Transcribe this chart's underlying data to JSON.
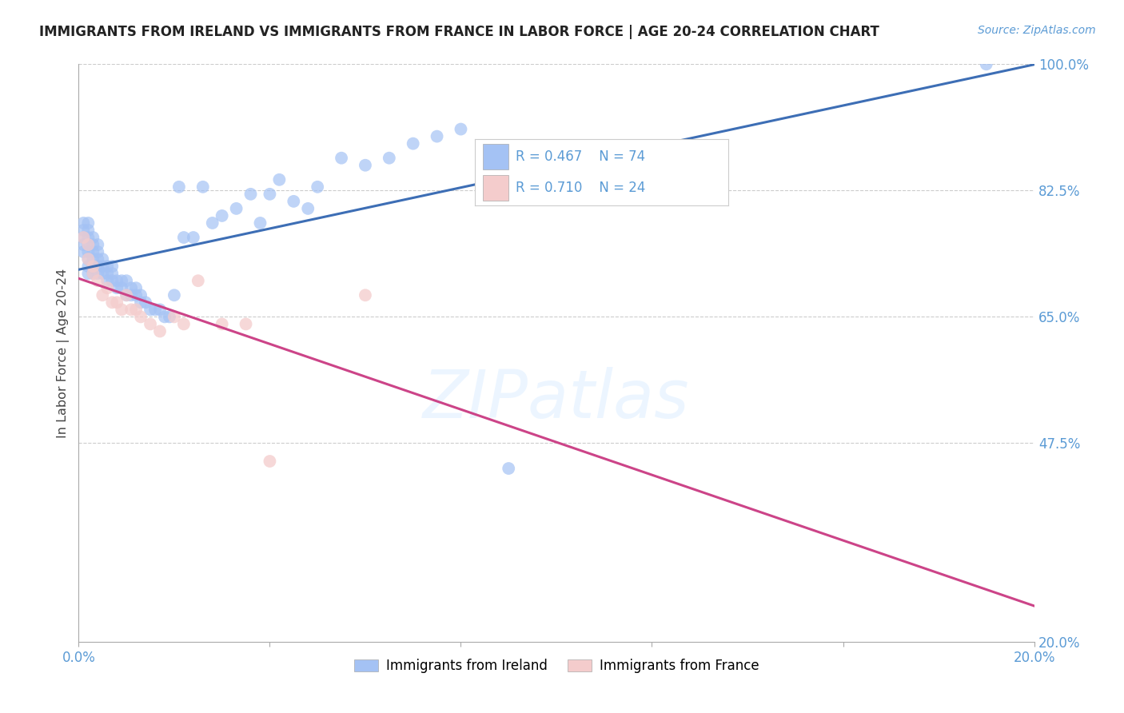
{
  "title": "IMMIGRANTS FROM IRELAND VS IMMIGRANTS FROM FRANCE IN LABOR FORCE | AGE 20-24 CORRELATION CHART",
  "source": "Source: ZipAtlas.com",
  "ylabel": "In Labor Force | Age 20-24",
  "x_min": 0.0,
  "x_max": 0.2,
  "y_min": 0.2,
  "y_max": 1.0,
  "ireland_R": 0.467,
  "ireland_N": 74,
  "france_R": 0.71,
  "france_N": 24,
  "ireland_color": "#a4c2f4",
  "france_color": "#f4cccc",
  "ireland_line_color": "#3d6eb5",
  "france_line_color": "#cc4488",
  "background_color": "#ffffff",
  "grid_color": "#cccccc",
  "legend_ireland": "Immigrants from Ireland",
  "legend_france": "Immigrants from France",
  "ireland_x": [
    0.001,
    0.001,
    0.001,
    0.001,
    0.001,
    0.002,
    0.002,
    0.002,
    0.002,
    0.002,
    0.002,
    0.002,
    0.002,
    0.003,
    0.003,
    0.003,
    0.003,
    0.003,
    0.003,
    0.004,
    0.004,
    0.004,
    0.004,
    0.004,
    0.005,
    0.005,
    0.005,
    0.006,
    0.006,
    0.006,
    0.007,
    0.007,
    0.007,
    0.008,
    0.008,
    0.009,
    0.009,
    0.01,
    0.01,
    0.011,
    0.011,
    0.012,
    0.012,
    0.013,
    0.013,
    0.014,
    0.015,
    0.016,
    0.017,
    0.018,
    0.019,
    0.02,
    0.021,
    0.022,
    0.024,
    0.026,
    0.028,
    0.03,
    0.033,
    0.036,
    0.038,
    0.04,
    0.042,
    0.045,
    0.048,
    0.05,
    0.055,
    0.06,
    0.065,
    0.07,
    0.075,
    0.08,
    0.09,
    0.19
  ],
  "ireland_y": [
    0.78,
    0.77,
    0.76,
    0.75,
    0.74,
    0.78,
    0.77,
    0.76,
    0.75,
    0.74,
    0.73,
    0.72,
    0.71,
    0.76,
    0.75,
    0.74,
    0.73,
    0.72,
    0.71,
    0.75,
    0.74,
    0.73,
    0.72,
    0.71,
    0.73,
    0.72,
    0.71,
    0.72,
    0.71,
    0.7,
    0.72,
    0.71,
    0.7,
    0.7,
    0.69,
    0.7,
    0.69,
    0.7,
    0.68,
    0.69,
    0.68,
    0.69,
    0.68,
    0.68,
    0.67,
    0.67,
    0.66,
    0.66,
    0.66,
    0.65,
    0.65,
    0.68,
    0.83,
    0.76,
    0.76,
    0.83,
    0.78,
    0.79,
    0.8,
    0.82,
    0.78,
    0.82,
    0.84,
    0.81,
    0.8,
    0.83,
    0.87,
    0.86,
    0.87,
    0.89,
    0.9,
    0.91,
    0.44,
    1.0
  ],
  "france_x": [
    0.001,
    0.002,
    0.002,
    0.003,
    0.003,
    0.004,
    0.005,
    0.006,
    0.007,
    0.008,
    0.009,
    0.01,
    0.011,
    0.012,
    0.013,
    0.015,
    0.017,
    0.02,
    0.022,
    0.025,
    0.03,
    0.035,
    0.04,
    0.06
  ],
  "france_y": [
    0.76,
    0.73,
    0.75,
    0.71,
    0.72,
    0.7,
    0.68,
    0.69,
    0.67,
    0.67,
    0.66,
    0.68,
    0.66,
    0.66,
    0.65,
    0.64,
    0.63,
    0.65,
    0.64,
    0.7,
    0.64,
    0.64,
    0.45,
    0.68
  ]
}
